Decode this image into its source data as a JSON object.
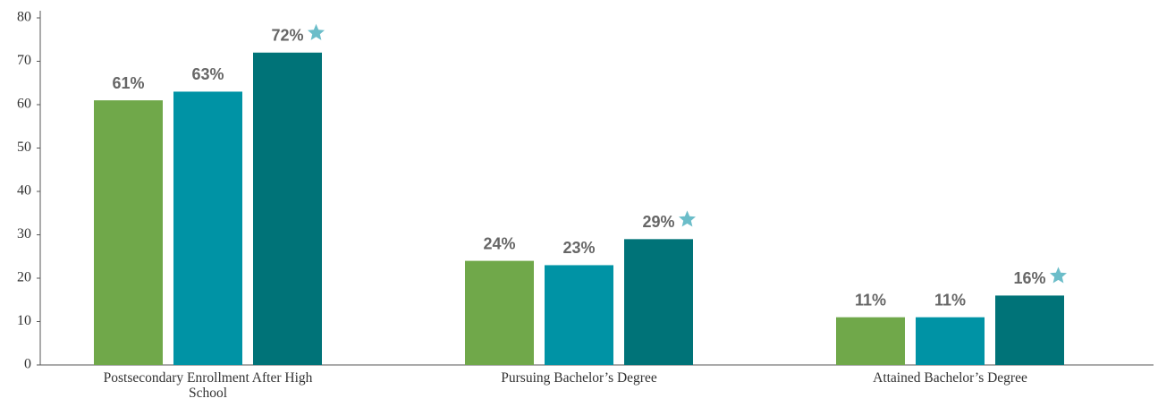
{
  "chart_data": {
    "type": "bar",
    "categories": [
      "Postsecondary Enrollment After High School",
      "Pursuing Bachelor’s Degree",
      "Attained Bachelor’s Degree"
    ],
    "series": [
      {
        "color": "#70a84a",
        "values": [
          61,
          24,
          11
        ],
        "value_labels": [
          "61%",
          "24%",
          "11%"
        ]
      },
      {
        "color": "#0093a5",
        "values": [
          63,
          23,
          11
        ],
        "value_labels": [
          "63%",
          "23%",
          "11%"
        ]
      },
      {
        "color": "#007378",
        "values": [
          72,
          29,
          16
        ],
        "value_labels": [
          "72%",
          "29%",
          "16%"
        ],
        "marker": "star",
        "marker_color": "#6bbdc9"
      }
    ],
    "ylim": [
      0,
      80
    ],
    "yticks": [
      0,
      10,
      20,
      30,
      40,
      50,
      60,
      70,
      80
    ],
    "grid": false
  }
}
